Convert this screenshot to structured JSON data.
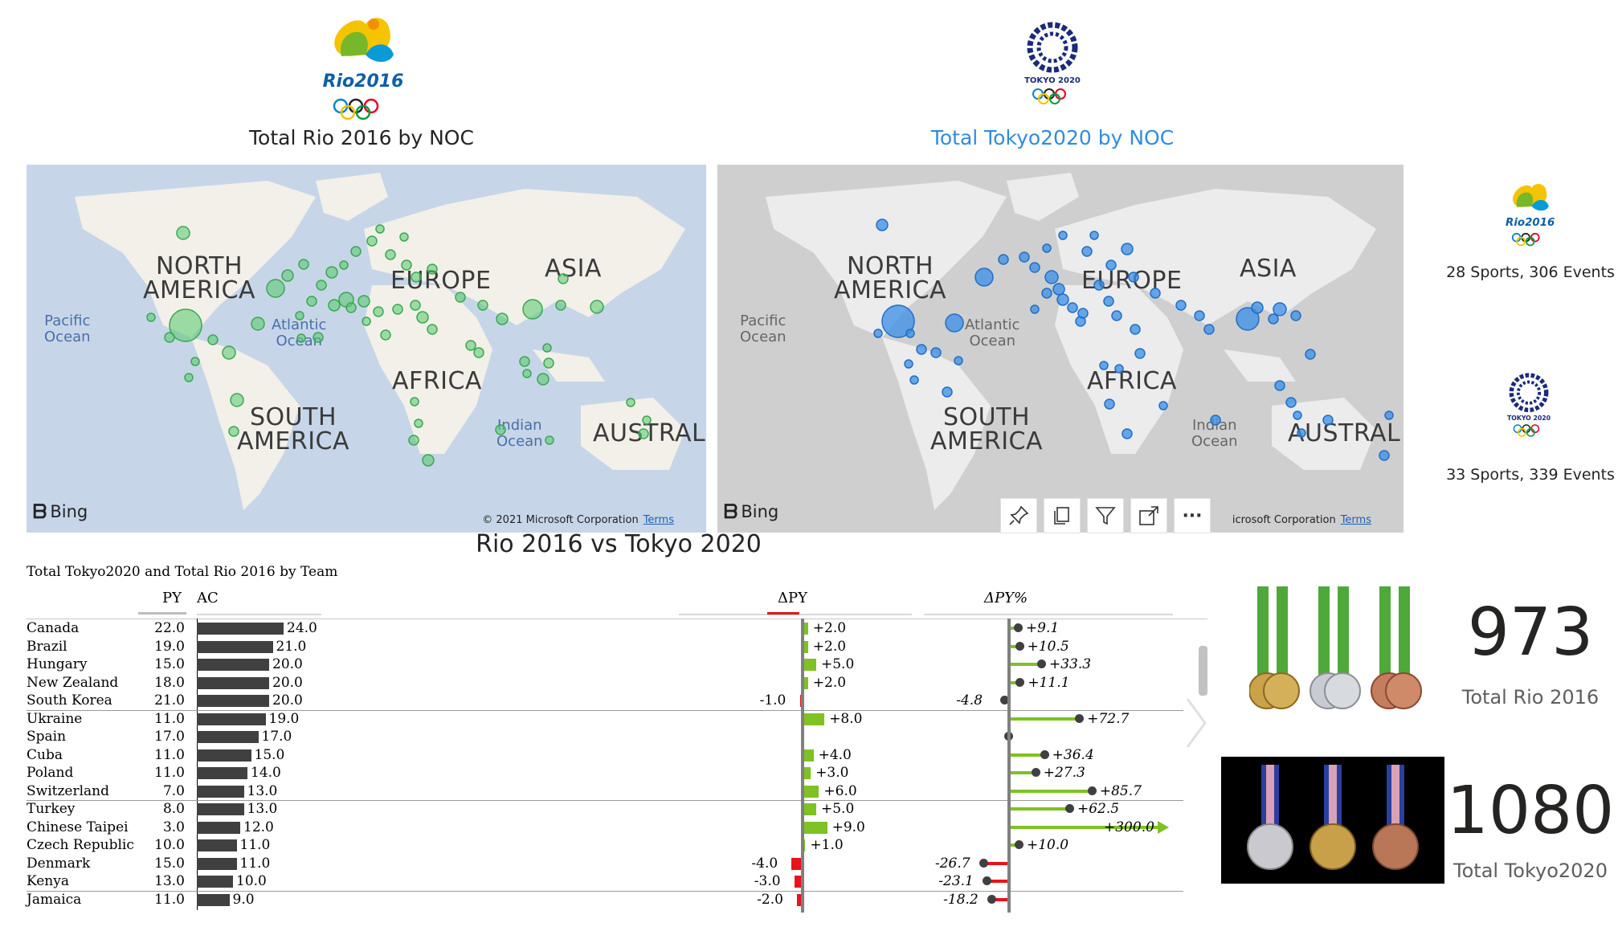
{
  "logos": {
    "rio_text": "Rio2016",
    "tokyo_text": "TOKYO 2020"
  },
  "titles": {
    "rio_map": "Total Rio 2016 by NOC",
    "tokyo_map": "Total Tokyo2020 by NOC",
    "comparison": "Rio 2016 vs Tokyo 2020",
    "table": "Total Tokyo2020 and Total Rio 2016 by Team"
  },
  "colors": {
    "rio_bubble": "#54c86b",
    "tokyo_bubble": "#3a8ee6",
    "tokyo_title": "#2f8ce0",
    "positive": "#7ec224",
    "negative": "#e8131b",
    "ac_bar": "#404040"
  },
  "map_labels": {
    "north_america": "NORTH\nAMERICA",
    "europe": "EUROPE",
    "asia": "ASIA",
    "africa": "AFRICA",
    "south_america": "SOUTH\nAMERICA",
    "australia": "AUSTRAL",
    "pacific": "Pacific\nOcean",
    "atlantic": "Atlantic\nOcean",
    "indian": "Indian\nOcean",
    "bing": "Bing",
    "copyright": "© 2021 Microsoft Corporation",
    "copyright_partial": "icrosoft Corporation",
    "terms": "Terms"
  },
  "toolbar": {
    "icons": [
      "pin-icon",
      "copy-icon",
      "filter-icon",
      "focus-mode-icon",
      "more-options-icon"
    ],
    "more": "···"
  },
  "side": {
    "rio_events": "28 Sports, 306 Events",
    "tokyo_events": "33 Sports, 339 Events"
  },
  "cards": {
    "rio_total": "973",
    "rio_label": "Total Rio 2016",
    "tokyo_total": "1080",
    "tokyo_label": "Total Tokyo2020"
  },
  "table": {
    "headers": {
      "py": "PY",
      "ac": "AC",
      "dpy": "ΔPY",
      "dpy_pct": "ΔPY%"
    },
    "rows": [
      {
        "team": "Canada",
        "py": "22.0",
        "ac": "24.0",
        "ac_value": 24,
        "dpy": "+2.0",
        "dpy_value": 2,
        "pct": "+9.1",
        "pct_value": 9.1
      },
      {
        "team": "Brazil",
        "py": "19.0",
        "ac": "21.0",
        "ac_value": 21,
        "dpy": "+2.0",
        "dpy_value": 2,
        "pct": "+10.5",
        "pct_value": 10.5
      },
      {
        "team": "Hungary",
        "py": "15.0",
        "ac": "20.0",
        "ac_value": 20,
        "dpy": "+5.0",
        "dpy_value": 5,
        "pct": "+33.3",
        "pct_value": 33.3
      },
      {
        "team": "New Zealand",
        "py": "18.0",
        "ac": "20.0",
        "ac_value": 20,
        "dpy": "+2.0",
        "dpy_value": 2,
        "pct": "+11.1",
        "pct_value": 11.1
      },
      {
        "team": "South Korea",
        "py": "21.0",
        "ac": "20.0",
        "ac_value": 20,
        "dpy": "-1.0",
        "dpy_value": -1,
        "pct": "-4.8",
        "pct_value": -4.8
      },
      {
        "team": "Ukraine",
        "py": "11.0",
        "ac": "19.0",
        "ac_value": 19,
        "dpy": "+8.0",
        "dpy_value": 8,
        "pct": "+72.7",
        "pct_value": 72.7
      },
      {
        "team": "Spain",
        "py": "17.0",
        "ac": "17.0",
        "ac_value": 17,
        "dpy": "",
        "dpy_value": 0,
        "pct": "",
        "pct_value": 0
      },
      {
        "team": "Cuba",
        "py": "11.0",
        "ac": "15.0",
        "ac_value": 15,
        "dpy": "+4.0",
        "dpy_value": 4,
        "pct": "+36.4",
        "pct_value": 36.4
      },
      {
        "team": "Poland",
        "py": "11.0",
        "ac": "14.0",
        "ac_value": 14,
        "dpy": "+3.0",
        "dpy_value": 3,
        "pct": "+27.3",
        "pct_value": 27.3
      },
      {
        "team": "Switzerland",
        "py": "7.0",
        "ac": "13.0",
        "ac_value": 13,
        "dpy": "+6.0",
        "dpy_value": 6,
        "pct": "+85.7",
        "pct_value": 85.7
      },
      {
        "team": "Turkey",
        "py": "8.0",
        "ac": "13.0",
        "ac_value": 13,
        "dpy": "+5.0",
        "dpy_value": 5,
        "pct": "+62.5",
        "pct_value": 62.5
      },
      {
        "team": "Chinese Taipei",
        "py": "3.0",
        "ac": "12.0",
        "ac_value": 12,
        "dpy": "+9.0",
        "dpy_value": 9,
        "pct": "+300.0",
        "pct_value": 300
      },
      {
        "team": "Czech Republic",
        "py": "10.0",
        "ac": "11.0",
        "ac_value": 11,
        "dpy": "+1.0",
        "dpy_value": 1,
        "pct": "+10.0",
        "pct_value": 10
      },
      {
        "team": "Denmark",
        "py": "15.0",
        "ac": "11.0",
        "ac_value": 11,
        "dpy": "-4.0",
        "dpy_value": -4,
        "pct": "-26.7",
        "pct_value": -26.7
      },
      {
        "team": "Kenya",
        "py": "13.0",
        "ac": "10.0",
        "ac_value": 10,
        "dpy": "-3.0",
        "dpy_value": -3,
        "pct": "-23.1",
        "pct_value": -23.1
      },
      {
        "team": "Jamaica",
        "py": "11.0",
        "ac": "9.0",
        "ac_value": 9,
        "dpy": "-2.0",
        "dpy_value": -2,
        "pct": "-18.2",
        "pct_value": -18.2
      }
    ]
  }
}
